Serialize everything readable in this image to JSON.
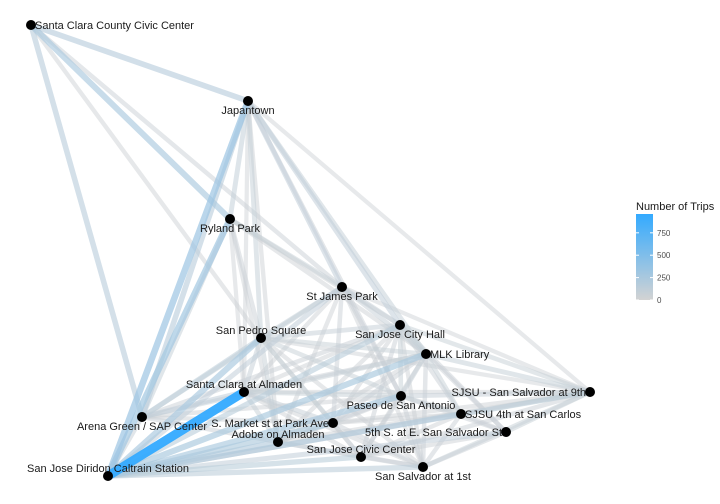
{
  "chart_data": {
    "type": "network",
    "title": "",
    "legend": {
      "title": "Number of Trips",
      "placement": "right",
      "ticks": [
        0,
        250,
        500,
        750
      ],
      "range": [
        0,
        960
      ],
      "color_low": "#d3d3d3",
      "color_high": "#33aaff"
    },
    "nodes": [
      {
        "id": "civic",
        "label": "Santa Clara County Civic Center"
      },
      {
        "id": "japantown",
        "label": "Japantown"
      },
      {
        "id": "ryland",
        "label": "Ryland Park"
      },
      {
        "id": "stjames",
        "label": "St James Park"
      },
      {
        "id": "cityhall",
        "label": "San Jose City Hall"
      },
      {
        "id": "sanpedro",
        "label": "San Pedro Square"
      },
      {
        "id": "mlk",
        "label": "MLK Library"
      },
      {
        "id": "sjsu9",
        "label": "SJSU - San Salvador at 9th"
      },
      {
        "id": "scalmaden",
        "label": "Santa Clara at Almaden"
      },
      {
        "id": "paseo",
        "label": "Paseo de San Antonio"
      },
      {
        "id": "sjsu4",
        "label": "SJSU 4th at San Carlos"
      },
      {
        "id": "arena",
        "label": "Arena Green / SAP Center"
      },
      {
        "id": "smarket",
        "label": "S. Market st at Park Ave"
      },
      {
        "id": "fifth",
        "label": "5th S. at E. San Salvador St"
      },
      {
        "id": "adobe",
        "label": "Adobe on Almaden"
      },
      {
        "id": "sjcivic",
        "label": "San Jose Civic Center"
      },
      {
        "id": "caltrain",
        "label": "San Jose Diridon Caltrain Station"
      },
      {
        "id": "salv1",
        "label": "San Salvador at 1st"
      }
    ],
    "edges": [
      {
        "from": "caltrain",
        "to": "scalmaden",
        "trips": 960
      },
      {
        "from": "caltrain",
        "to": "japantown",
        "trips": 330
      },
      {
        "from": "caltrain",
        "to": "ryland",
        "trips": 300
      },
      {
        "from": "caltrain",
        "to": "sanpedro",
        "trips": 260
      },
      {
        "from": "caltrain",
        "to": "mlk",
        "trips": 250
      },
      {
        "from": "caltrain",
        "to": "paseo",
        "trips": 240
      },
      {
        "from": "caltrain",
        "to": "smarket",
        "trips": 220
      },
      {
        "from": "caltrain",
        "to": "adobe",
        "trips": 200
      },
      {
        "from": "caltrain",
        "to": "sjsu4",
        "trips": 180
      },
      {
        "from": "caltrain",
        "to": "cityhall",
        "trips": 160
      },
      {
        "from": "caltrain",
        "to": "sjcivic",
        "trips": 150
      },
      {
        "from": "caltrain",
        "to": "salv1",
        "trips": 140
      },
      {
        "from": "caltrain",
        "to": "sjsu9",
        "trips": 130
      },
      {
        "from": "caltrain",
        "to": "fifth",
        "trips": 110
      },
      {
        "from": "caltrain",
        "to": "stjames",
        "trips": 110
      },
      {
        "from": "caltrain",
        "to": "arena",
        "trips": 80
      },
      {
        "from": "civic",
        "to": "ryland",
        "trips": 240
      },
      {
        "from": "civic",
        "to": "japantown",
        "trips": 180
      },
      {
        "from": "civic",
        "to": "arena",
        "trips": 170
      },
      {
        "from": "civic",
        "to": "stjames",
        "trips": 60
      },
      {
        "from": "civic",
        "to": "sanpedro",
        "trips": 50
      },
      {
        "from": "arena",
        "to": "japantown",
        "trips": 170
      },
      {
        "from": "arena",
        "to": "ryland",
        "trips": 90
      },
      {
        "from": "arena",
        "to": "sanpedro",
        "trips": 120
      },
      {
        "from": "arena",
        "to": "scalmaden",
        "trips": 110
      },
      {
        "from": "arena",
        "to": "stjames",
        "trips": 90
      },
      {
        "from": "arena",
        "to": "mlk",
        "trips": 70
      },
      {
        "from": "arena",
        "to": "cityhall",
        "trips": 60
      },
      {
        "from": "arena",
        "to": "adobe",
        "trips": 60
      },
      {
        "from": "arena",
        "to": "smarket",
        "trips": 50
      },
      {
        "from": "arena",
        "to": "paseo",
        "trips": 50
      },
      {
        "from": "japantown",
        "to": "ryland",
        "trips": 100
      },
      {
        "from": "japantown",
        "to": "stjames",
        "trips": 110
      },
      {
        "from": "japantown",
        "to": "cityhall",
        "trips": 110
      },
      {
        "from": "japantown",
        "to": "sanpedro",
        "trips": 90
      },
      {
        "from": "japantown",
        "to": "mlk",
        "trips": 90
      },
      {
        "from": "japantown",
        "to": "paseo",
        "trips": 60
      },
      {
        "from": "japantown",
        "to": "adobe",
        "trips": 50
      },
      {
        "from": "japantown",
        "to": "scalmaden",
        "trips": 40
      },
      {
        "from": "japantown",
        "to": "sjsu9",
        "trips": 40
      },
      {
        "from": "ryland",
        "to": "stjames",
        "trips": 70
      },
      {
        "from": "ryland",
        "to": "sanpedro",
        "trips": 60
      },
      {
        "from": "ryland",
        "to": "cityhall",
        "trips": 50
      },
      {
        "from": "ryland",
        "to": "mlk",
        "trips": 50
      },
      {
        "from": "ryland",
        "to": "adobe",
        "trips": 40
      },
      {
        "from": "ryland",
        "to": "scalmaden",
        "trips": 40
      },
      {
        "from": "stjames",
        "to": "sanpedro",
        "trips": 90
      },
      {
        "from": "stjames",
        "to": "cityhall",
        "trips": 80
      },
      {
        "from": "stjames",
        "to": "mlk",
        "trips": 80
      },
      {
        "from": "stjames",
        "to": "paseo",
        "trips": 60
      },
      {
        "from": "stjames",
        "to": "smarket",
        "trips": 60
      },
      {
        "from": "stjames",
        "to": "adobe",
        "trips": 50
      },
      {
        "from": "stjames",
        "to": "scalmaden",
        "trips": 50
      },
      {
        "from": "stjames",
        "to": "sjsu9",
        "trips": 40
      },
      {
        "from": "stjames",
        "to": "salv1",
        "trips": 40
      },
      {
        "from": "cityhall",
        "to": "mlk",
        "trips": 90
      },
      {
        "from": "cityhall",
        "to": "sanpedro",
        "trips": 80
      },
      {
        "from": "cityhall",
        "to": "paseo",
        "trips": 70
      },
      {
        "from": "cityhall",
        "to": "sjsu9",
        "trips": 70
      },
      {
        "from": "cityhall",
        "to": "sjsu4",
        "trips": 60
      },
      {
        "from": "cityhall",
        "to": "fifth",
        "trips": 60
      },
      {
        "from": "cityhall",
        "to": "sjcivic",
        "trips": 60
      },
      {
        "from": "cityhall",
        "to": "salv1",
        "trips": 50
      },
      {
        "from": "cityhall",
        "to": "smarket",
        "trips": 50
      },
      {
        "from": "cityhall",
        "to": "adobe",
        "trips": 50
      },
      {
        "from": "cityhall",
        "to": "scalmaden",
        "trips": 50
      },
      {
        "from": "sanpedro",
        "to": "mlk",
        "trips": 70
      },
      {
        "from": "sanpedro",
        "to": "scalmaden",
        "trips": 80
      },
      {
        "from": "sanpedro",
        "to": "paseo",
        "trips": 70
      },
      {
        "from": "sanpedro",
        "to": "smarket",
        "trips": 70
      },
      {
        "from": "sanpedro",
        "to": "adobe",
        "trips": 70
      },
      {
        "from": "sanpedro",
        "to": "sjcivic",
        "trips": 50
      },
      {
        "from": "sanpedro",
        "to": "salv1",
        "trips": 50
      },
      {
        "from": "sanpedro",
        "to": "sjsu9",
        "trips": 40
      },
      {
        "from": "mlk",
        "to": "sjsu9",
        "trips": 90
      },
      {
        "from": "mlk",
        "to": "paseo",
        "trips": 80
      },
      {
        "from": "mlk",
        "to": "sjsu4",
        "trips": 70
      },
      {
        "from": "mlk",
        "to": "fifth",
        "trips": 60
      },
      {
        "from": "mlk",
        "to": "salv1",
        "trips": 60
      },
      {
        "from": "mlk",
        "to": "sjcivic",
        "trips": 50
      },
      {
        "from": "mlk",
        "to": "smarket",
        "trips": 60
      },
      {
        "from": "mlk",
        "to": "scalmaden",
        "trips": 60
      },
      {
        "from": "mlk",
        "to": "adobe",
        "trips": 50
      },
      {
        "from": "sjsu9",
        "to": "paseo",
        "trips": 80
      },
      {
        "from": "sjsu9",
        "to": "sjsu4",
        "trips": 80
      },
      {
        "from": "sjsu9",
        "to": "fifth",
        "trips": 70
      },
      {
        "from": "sjsu9",
        "to": "salv1",
        "trips": 70
      },
      {
        "from": "sjsu9",
        "to": "sjcivic",
        "trips": 60
      },
      {
        "from": "sjsu9",
        "to": "smarket",
        "trips": 50
      },
      {
        "from": "sjsu9",
        "to": "adobe",
        "trips": 50
      },
      {
        "from": "sjsu9",
        "to": "scalmaden",
        "trips": 40
      },
      {
        "from": "scalmaden",
        "to": "paseo",
        "trips": 70
      },
      {
        "from": "scalmaden",
        "to": "smarket",
        "trips": 80
      },
      {
        "from": "scalmaden",
        "to": "adobe",
        "trips": 70
      },
      {
        "from": "scalmaden",
        "to": "sjcivic",
        "trips": 50
      },
      {
        "from": "scalmaden",
        "to": "salv1",
        "trips": 50
      },
      {
        "from": "paseo",
        "to": "sjsu4",
        "trips": 70
      },
      {
        "from": "paseo",
        "to": "smarket",
        "trips": 60
      },
      {
        "from": "paseo",
        "to": "adobe",
        "trips": 60
      },
      {
        "from": "paseo",
        "to": "sjcivic",
        "trips": 60
      },
      {
        "from": "paseo",
        "to": "salv1",
        "trips": 60
      },
      {
        "from": "paseo",
        "to": "fifth",
        "trips": 60
      },
      {
        "from": "sjsu4",
        "to": "fifth",
        "trips": 60
      },
      {
        "from": "sjsu4",
        "to": "salv1",
        "trips": 60
      },
      {
        "from": "sjsu4",
        "to": "sjcivic",
        "trips": 50
      },
      {
        "from": "sjsu4",
        "to": "smarket",
        "trips": 50
      },
      {
        "from": "fifth",
        "to": "salv1",
        "trips": 60
      },
      {
        "from": "fifth",
        "to": "sjcivic",
        "trips": 50
      },
      {
        "from": "smarket",
        "to": "adobe",
        "trips": 70
      },
      {
        "from": "smarket",
        "to": "sjcivic",
        "trips": 60
      },
      {
        "from": "smarket",
        "to": "salv1",
        "trips": 60
      },
      {
        "from": "adobe",
        "to": "sjcivic",
        "trips": 70
      },
      {
        "from": "adobe",
        "to": "salv1",
        "trips": 60
      },
      {
        "from": "sjcivic",
        "to": "salv1",
        "trips": 60
      }
    ]
  }
}
